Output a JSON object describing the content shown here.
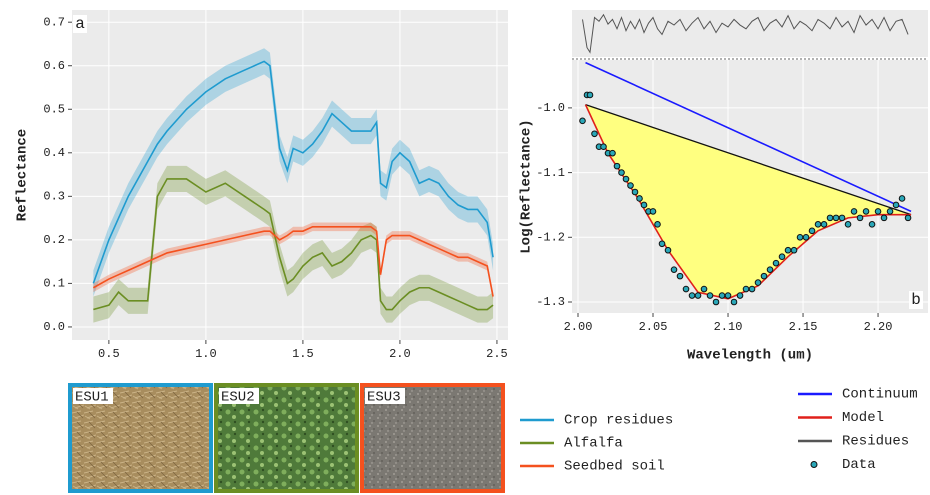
{
  "chart_data": [
    {
      "type": "line",
      "annotation": "a",
      "y_label": "Reflectance",
      "xlim": [
        0.31,
        2.557
      ],
      "ylim": [
        -0.03,
        0.728
      ],
      "xticks": [
        0.5,
        {
          "value": 1,
          "label": "1.0"
        },
        1.5,
        {
          "value": 2,
          "label": "2.0"
        },
        2.5
      ],
      "yticks": [
        {
          "value": 0,
          "label": "0.0"
        },
        0.1,
        0.2,
        0.3,
        0.4,
        0.5,
        0.6,
        0.7
      ],
      "grid": true,
      "x": [
        0.42,
        0.5,
        0.55,
        0.6,
        0.7,
        0.75,
        0.8,
        0.9,
        1.0,
        1.1,
        1.2,
        1.3,
        1.33,
        1.38,
        1.42,
        1.45,
        1.5,
        1.55,
        1.6,
        1.65,
        1.7,
        1.75,
        1.8,
        1.85,
        1.88,
        1.9,
        1.93,
        1.96,
        2.0,
        2.05,
        2.1,
        2.15,
        2.2,
        2.25,
        2.3,
        2.35,
        2.4,
        2.45,
        2.48
      ],
      "series": [
        {
          "name": "Crop residues",
          "color": "#1f9bcf",
          "error": 0.03,
          "values": [
            0.1,
            0.2,
            0.25,
            0.3,
            0.38,
            0.42,
            0.45,
            0.5,
            0.54,
            0.57,
            0.59,
            0.61,
            0.6,
            0.41,
            0.36,
            0.41,
            0.4,
            0.42,
            0.45,
            0.49,
            0.47,
            0.45,
            0.45,
            0.45,
            0.47,
            0.33,
            0.32,
            0.38,
            0.4,
            0.38,
            0.33,
            0.34,
            0.33,
            0.3,
            0.28,
            0.27,
            0.27,
            0.24,
            0.16
          ]
        },
        {
          "name": "Alfalfa",
          "color": "#6b8e23",
          "error": 0.03,
          "values": [
            0.04,
            0.05,
            0.08,
            0.06,
            0.06,
            0.3,
            0.34,
            0.34,
            0.31,
            0.33,
            0.3,
            0.27,
            0.26,
            0.16,
            0.1,
            0.11,
            0.14,
            0.16,
            0.17,
            0.14,
            0.15,
            0.17,
            0.2,
            0.21,
            0.2,
            0.06,
            0.04,
            0.04,
            0.06,
            0.08,
            0.09,
            0.09,
            0.08,
            0.07,
            0.06,
            0.05,
            0.04,
            0.04,
            0.05
          ]
        },
        {
          "name": "Seedbed soil",
          "color": "#f4511e",
          "error": 0.01,
          "values": [
            0.09,
            0.11,
            0.12,
            0.13,
            0.15,
            0.16,
            0.17,
            0.18,
            0.19,
            0.2,
            0.21,
            0.22,
            0.22,
            0.2,
            0.21,
            0.22,
            0.22,
            0.23,
            0.23,
            0.23,
            0.23,
            0.23,
            0.23,
            0.23,
            0.22,
            0.12,
            0.2,
            0.21,
            0.21,
            0.21,
            0.2,
            0.19,
            0.18,
            0.17,
            0.16,
            0.16,
            0.15,
            0.14,
            0.07
          ]
        }
      ]
    },
    {
      "type": "line",
      "annotation": "b",
      "x_label": "Wavelength (um)",
      "y_label": "Log(Reflectance)",
      "xlim": [
        1.996,
        2.2333
      ],
      "ylim": [
        -1.317,
        -0.926
      ],
      "y2lim": [
        -0.03,
        0.02
      ],
      "xticks": [
        {
          "value": 2,
          "label": "2.00"
        },
        2.05,
        {
          "value": 2.1,
          "label": "2.10"
        },
        2.15,
        {
          "value": 2.2,
          "label": "2.20"
        }
      ],
      "yticks": [
        {
          "value": -1,
          "label": "-1.0"
        },
        -1.1,
        -1.2,
        -1.3
      ],
      "grid": true,
      "series": [
        {
          "name": "Continuum",
          "color": "#1a1aff",
          "x": [
            2.005,
            2.222
          ],
          "values": [
            -0.93,
            -1.16
          ]
        },
        {
          "name": "Model",
          "color": "#e0201b",
          "fill": "#ffff80",
          "x": [
            2.005,
            2.02,
            2.04,
            2.06,
            2.08,
            2.1,
            2.12,
            2.14,
            2.16,
            2.18,
            2.2,
            2.222
          ],
          "values": [
            -0.995,
            -1.07,
            -1.14,
            -1.22,
            -1.285,
            -1.295,
            -1.275,
            -1.23,
            -1.19,
            -1.17,
            -1.165,
            -1.165
          ]
        },
        {
          "name": "Residues",
          "color": "#555555",
          "axis": "y2",
          "x": [
            2.003,
            2.006,
            2.008,
            2.011,
            2.014,
            2.017,
            2.02,
            2.023,
            2.026,
            2.029,
            2.032,
            2.035,
            2.038,
            2.041,
            2.044,
            2.047,
            2.05,
            2.053,
            2.056,
            2.06,
            2.064,
            2.068,
            2.072,
            2.076,
            2.08,
            2.084,
            2.088,
            2.092,
            2.096,
            2.1,
            2.104,
            2.108,
            2.112,
            2.116,
            2.12,
            2.124,
            2.128,
            2.132,
            2.136,
            2.14,
            2.144,
            2.148,
            2.152,
            2.156,
            2.16,
            2.164,
            2.168,
            2.172,
            2.176,
            2.18,
            2.184,
            2.188,
            2.192,
            2.196,
            2.2,
            2.204,
            2.208,
            2.212,
            2.216,
            2.22
          ],
          "values": [
            0.01,
            -0.02,
            -0.025,
            0.012,
            0.008,
            0.015,
            0.005,
            0.01,
            0,
            0.012,
            -0.002,
            0.008,
            0,
            0.01,
            -0.004,
            0.006,
            0.012,
            0,
            -0.006,
            0.008,
            0.004,
            0.01,
            -0.002,
            0.006,
            0.012,
            0,
            0.008,
            -0.004,
            0.006,
            0.002,
            0.01,
            0.004,
            0,
            0.008,
            0.012,
            -0.002,
            0.006,
            0.01,
            0.002,
            0.014,
            0,
            0.008,
            0.004,
            -0.002,
            0.01,
            0.006,
            0,
            0.012,
            0.002,
            0.008,
            -0.004,
            0.014,
            0.004,
            0.01,
            0,
            0.012,
            -0.002,
            0.008,
            0.01,
            -0.006
          ]
        },
        {
          "name": "Data",
          "color": "#2aa7b8",
          "kind": "scatter",
          "x": [
            2.003,
            2.006,
            2.008,
            2.011,
            2.014,
            2.017,
            2.02,
            2.023,
            2.026,
            2.029,
            2.032,
            2.035,
            2.038,
            2.041,
            2.044,
            2.047,
            2.05,
            2.053,
            2.056,
            2.06,
            2.064,
            2.068,
            2.072,
            2.076,
            2.08,
            2.084,
            2.088,
            2.092,
            2.096,
            2.1,
            2.104,
            2.108,
            2.112,
            2.116,
            2.12,
            2.124,
            2.128,
            2.132,
            2.136,
            2.14,
            2.144,
            2.148,
            2.152,
            2.156,
            2.16,
            2.164,
            2.168,
            2.172,
            2.176,
            2.18,
            2.184,
            2.188,
            2.192,
            2.196,
            2.2,
            2.204,
            2.208,
            2.212,
            2.216,
            2.22
          ],
          "values": [
            -1.02,
            -0.98,
            -0.98,
            -1.04,
            -1.06,
            -1.06,
            -1.07,
            -1.07,
            -1.09,
            -1.1,
            -1.11,
            -1.12,
            -1.13,
            -1.14,
            -1.15,
            -1.16,
            -1.16,
            -1.18,
            -1.21,
            -1.22,
            -1.25,
            -1.26,
            -1.28,
            -1.29,
            -1.29,
            -1.28,
            -1.29,
            -1.3,
            -1.29,
            -1.29,
            -1.3,
            -1.29,
            -1.28,
            -1.28,
            -1.27,
            -1.26,
            -1.25,
            -1.24,
            -1.23,
            -1.22,
            -1.22,
            -1.2,
            -1.2,
            -1.19,
            -1.18,
            -1.18,
            -1.17,
            -1.17,
            -1.17,
            -1.18,
            -1.16,
            -1.17,
            -1.16,
            -1.18,
            -1.16,
            -1.17,
            -1.16,
            -1.15,
            -1.14,
            -1.17
          ]
        }
      ]
    }
  ],
  "photos": [
    {
      "label": "ESU1",
      "color": "#1f9bcf"
    },
    {
      "label": "ESU2",
      "color": "#6b8e23"
    },
    {
      "label": "ESU3",
      "color": "#f4511e"
    }
  ]
}
